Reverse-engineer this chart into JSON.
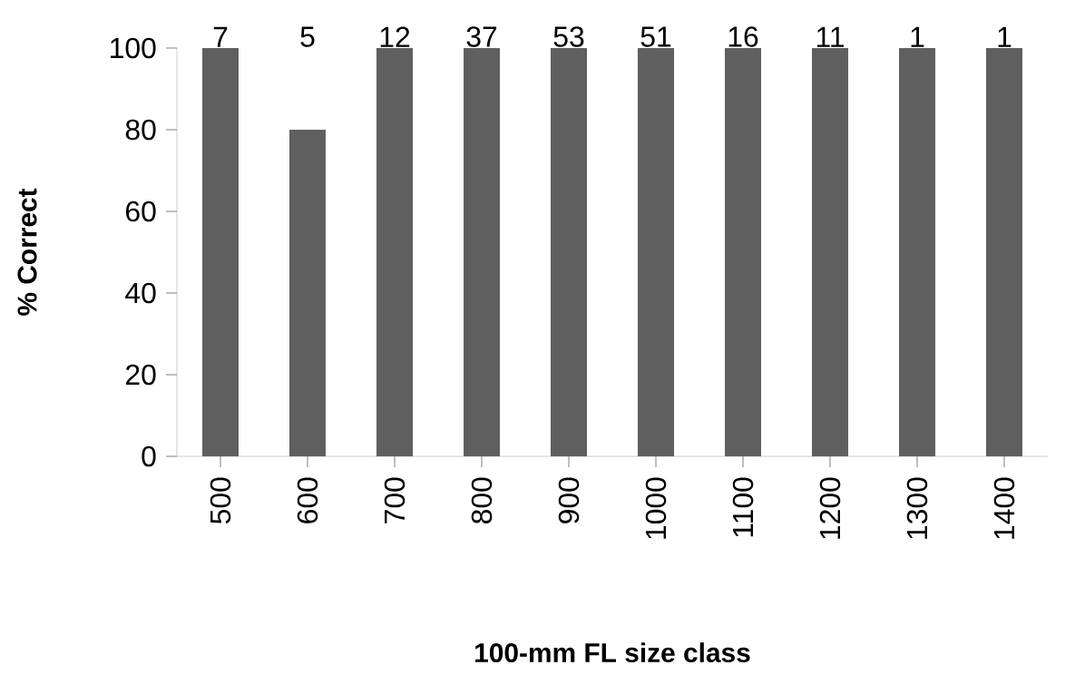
{
  "chart_data": {
    "type": "bar",
    "xlabel": "100-mm FL size class",
    "ylabel": "% Correct",
    "categories": [
      "500",
      "600",
      "700",
      "800",
      "900",
      "1000",
      "1100",
      "1200",
      "1300",
      "1400"
    ],
    "values": [
      100,
      80,
      100,
      100,
      100,
      100,
      100,
      100,
      100,
      100
    ],
    "annotations": [
      {
        "text": "7",
        "x": "500",
        "y": 100
      },
      "5",
      {
        "text": "12",
        "x": "700",
        "y": 100
      },
      {
        "text": "37",
        "x": "800",
        "y": 100
      },
      {
        "text": "53",
        "x": "900",
        "y": 100
      },
      {
        "text": "51",
        "x": "1000",
        "y": 100
      },
      {
        "text": "16",
        "x": "1100",
        "y": 100
      },
      {
        "text": "11",
        "x": "1200",
        "y": 100
      },
      {
        "text": "1",
        "x": "1300",
        "y": 100
      },
      {
        "text": "1",
        "x": "1400",
        "y": 100
      }
    ],
    "color": "#5f5f5f",
    "ylim": [
      0,
      100
    ],
    "yticks": [
      0,
      20,
      40,
      60,
      80,
      100
    ],
    "grid": false
  }
}
